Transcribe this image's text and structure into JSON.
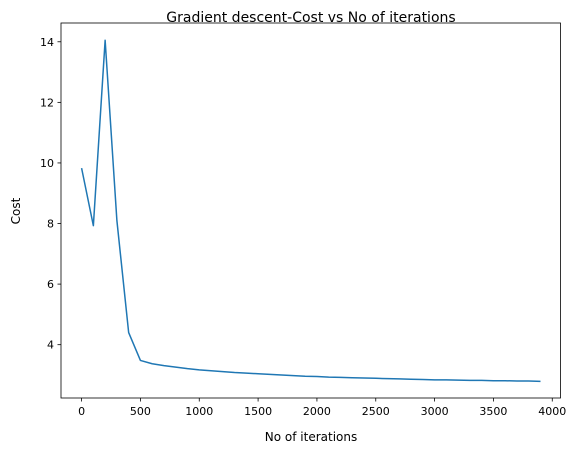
{
  "chart_data": {
    "type": "line",
    "title": "Gradient descent-Cost vs No of iterations",
    "xlabel": "No of iterations",
    "ylabel": "Cost",
    "xlim": [
      -175,
      4070
    ],
    "ylim": [
      2.24,
      14.62
    ],
    "xticks": [
      0,
      500,
      1000,
      1500,
      2000,
      2500,
      3000,
      3500,
      4000
    ],
    "yticks": [
      4,
      6,
      8,
      10,
      12,
      14
    ],
    "grid": false,
    "legend": "none",
    "series": [
      {
        "color": "#1f77b4",
        "x": [
          0,
          100,
          200,
          300,
          400,
          500,
          600,
          700,
          800,
          900,
          1000,
          1100,
          1200,
          1300,
          1400,
          1500,
          1600,
          1700,
          1800,
          1900,
          2000,
          2100,
          2200,
          2300,
          2400,
          2500,
          2600,
          2700,
          2800,
          2900,
          3000,
          3100,
          3200,
          3300,
          3400,
          3500,
          3600,
          3700,
          3800,
          3900
        ],
        "y": [
          9.83,
          7.93,
          14.05,
          8.1,
          4.4,
          3.48,
          3.37,
          3.31,
          3.26,
          3.21,
          3.17,
          3.14,
          3.11,
          3.08,
          3.06,
          3.04,
          3.02,
          3.0,
          2.98,
          2.96,
          2.95,
          2.93,
          2.92,
          2.91,
          2.9,
          2.89,
          2.88,
          2.87,
          2.86,
          2.85,
          2.84,
          2.84,
          2.83,
          2.82,
          2.82,
          2.81,
          2.81,
          2.8,
          2.8,
          2.79
        ]
      }
    ]
  }
}
